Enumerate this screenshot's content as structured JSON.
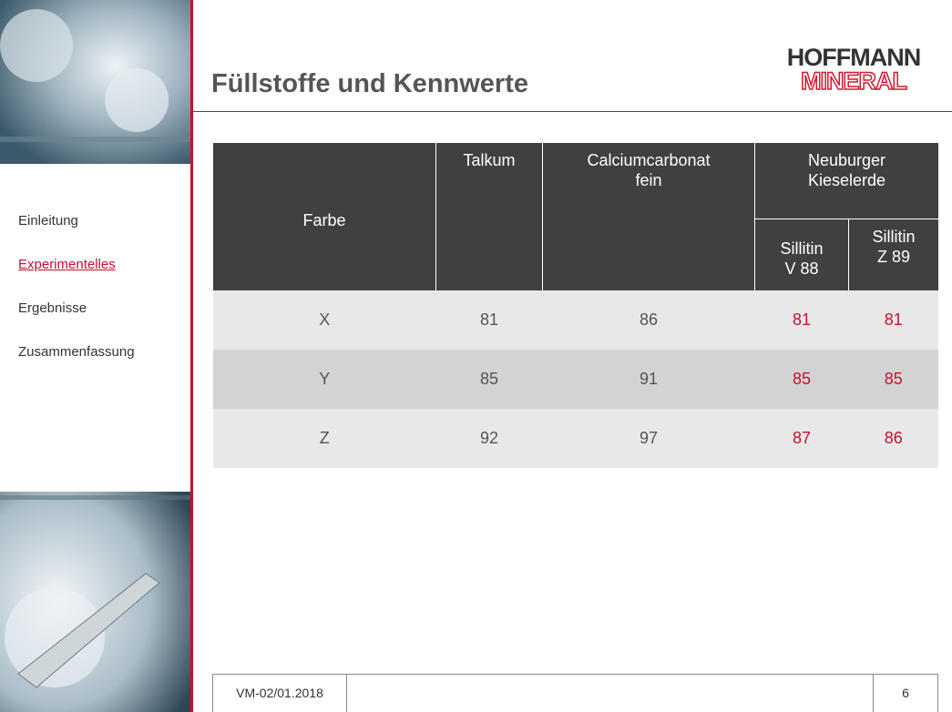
{
  "header": {
    "title": "Füllstoffe und Kennwerte",
    "logo": [
      "HOFFMANN",
      "MINERAL"
    ]
  },
  "nav": {
    "items": [
      "Einleitung",
      "Experimentelles",
      "Ergebnisse",
      "Zusammenfassung"
    ],
    "active": 1
  },
  "table": {
    "headers": [
      "Farbe",
      "Talkum",
      "Calciumcarbonat\nfein",
      "Neuburger\nKieselerde"
    ],
    "subheaders": [
      "Sillitin\nV 88",
      "Sillitin\nZ 89"
    ],
    "rows": [
      [
        "X",
        81,
        86,
        81,
        81
      ],
      [
        "Y",
        85,
        91,
        85,
        85
      ],
      [
        "Z",
        92,
        97,
        87,
        86
      ]
    ]
  },
  "footer": {
    "code": "VM-02/01.2018",
    "page": 6
  }
}
